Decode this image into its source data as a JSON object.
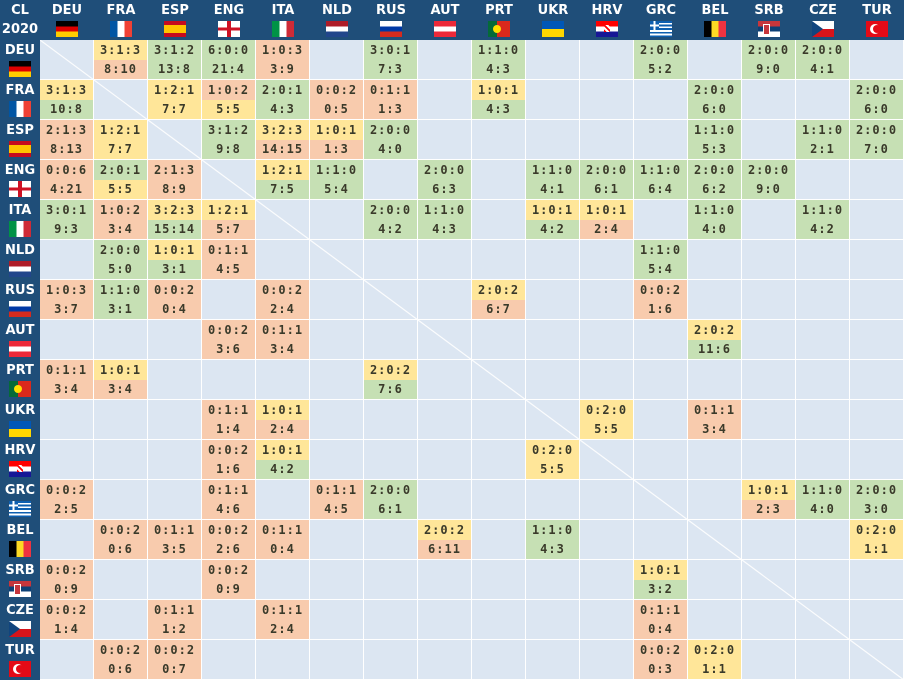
{
  "corner": {
    "line1": "CL",
    "line2": "2020"
  },
  "teams": [
    "DEU",
    "FRA",
    "ESP",
    "ENG",
    "ITA",
    "NLD",
    "RUS",
    "AUT",
    "PRT",
    "UKR",
    "HRV",
    "GRC",
    "BEL",
    "SRB",
    "CZE",
    "TUR"
  ],
  "colors": {
    "g": "#c6e0b4",
    "y": "#ffe699",
    "r": "#f8cbad",
    "empty": "#dce6f2",
    "header": "#1f4e79"
  },
  "rows": {
    "DEU": {
      "FRA": {
        "rec": "3:1:3",
        "goals": "8:10",
        "c": "yr"
      },
      "ESP": {
        "rec": "3:1:2",
        "goals": "13:8",
        "c": "gg"
      },
      "ENG": {
        "rec": "6:0:0",
        "goals": "21:4",
        "c": "gg"
      },
      "ITA": {
        "rec": "1:0:3",
        "goals": "3:9",
        "c": "rr"
      },
      "RUS": {
        "rec": "3:0:1",
        "goals": "7:3",
        "c": "gg"
      },
      "PRT": {
        "rec": "1:1:0",
        "goals": "4:3",
        "c": "gg"
      },
      "GRC": {
        "rec": "2:0:0",
        "goals": "5:2",
        "c": "gg"
      },
      "SRB": {
        "rec": "2:0:0",
        "goals": "9:0",
        "c": "gg"
      },
      "CZE": {
        "rec": "2:0:0",
        "goals": "4:1",
        "c": "gg"
      }
    },
    "FRA": {
      "DEU": {
        "rec": "3:1:3",
        "goals": "10:8",
        "c": "yg"
      },
      "ESP": {
        "rec": "1:2:1",
        "goals": "7:7",
        "c": "yy"
      },
      "ENG": {
        "rec": "1:0:2",
        "goals": "5:5",
        "c": "ry"
      },
      "ITA": {
        "rec": "2:0:1",
        "goals": "4:3",
        "c": "gg"
      },
      "NLD": {
        "rec": "0:0:2",
        "goals": "0:5",
        "c": "rr"
      },
      "RUS": {
        "rec": "0:1:1",
        "goals": "1:3",
        "c": "rr"
      },
      "PRT": {
        "rec": "1:0:1",
        "goals": "4:3",
        "c": "yg"
      },
      "BEL": {
        "rec": "2:0:0",
        "goals": "6:0",
        "c": "gg"
      },
      "TUR": {
        "rec": "2:0:0",
        "goals": "6:0",
        "c": "gg"
      }
    },
    "ESP": {
      "DEU": {
        "rec": "2:1:3",
        "goals": "8:13",
        "c": "rr"
      },
      "FRA": {
        "rec": "1:2:1",
        "goals": "7:7",
        "c": "yy"
      },
      "ENG": {
        "rec": "3:1:2",
        "goals": "9:8",
        "c": "gg"
      },
      "ITA": {
        "rec": "3:2:3",
        "goals": "14:15",
        "c": "yr"
      },
      "NLD": {
        "rec": "1:0:1",
        "goals": "1:3",
        "c": "yr"
      },
      "RUS": {
        "rec": "2:0:0",
        "goals": "4:0",
        "c": "gg"
      },
      "BEL": {
        "rec": "1:1:0",
        "goals": "5:3",
        "c": "gg"
      },
      "CZE": {
        "rec": "1:1:0",
        "goals": "2:1",
        "c": "gg"
      },
      "TUR": {
        "rec": "2:0:0",
        "goals": "7:0",
        "c": "gg"
      }
    },
    "ENG": {
      "DEU": {
        "rec": "0:0:6",
        "goals": "4:21",
        "c": "rr"
      },
      "FRA": {
        "rec": "2:0:1",
        "goals": "5:5",
        "c": "gy"
      },
      "ESP": {
        "rec": "2:1:3",
        "goals": "8:9",
        "c": "rr"
      },
      "ITA": {
        "rec": "1:2:1",
        "goals": "7:5",
        "c": "yg"
      },
      "NLD": {
        "rec": "1:1:0",
        "goals": "5:4",
        "c": "gg"
      },
      "AUT": {
        "rec": "2:0:0",
        "goals": "6:3",
        "c": "gg"
      },
      "UKR": {
        "rec": "1:1:0",
        "goals": "4:1",
        "c": "gg"
      },
      "HRV": {
        "rec": "2:0:0",
        "goals": "6:1",
        "c": "gg"
      },
      "GRC": {
        "rec": "1:1:0",
        "goals": "6:4",
        "c": "gg"
      },
      "BEL": {
        "rec": "2:0:0",
        "goals": "6:2",
        "c": "gg"
      },
      "SRB": {
        "rec": "2:0:0",
        "goals": "9:0",
        "c": "gg"
      }
    },
    "ITA": {
      "DEU": {
        "rec": "3:0:1",
        "goals": "9:3",
        "c": "gg"
      },
      "FRA": {
        "rec": "1:0:2",
        "goals": "3:4",
        "c": "rr"
      },
      "ESP": {
        "rec": "3:2:3",
        "goals": "15:14",
        "c": "yg"
      },
      "ENG": {
        "rec": "1:2:1",
        "goals": "5:7",
        "c": "yr"
      },
      "RUS": {
        "rec": "2:0:0",
        "goals": "4:2",
        "c": "gg"
      },
      "AUT": {
        "rec": "1:1:0",
        "goals": "4:3",
        "c": "gg"
      },
      "UKR": {
        "rec": "1:0:1",
        "goals": "4:2",
        "c": "yg"
      },
      "HRV": {
        "rec": "1:0:1",
        "goals": "2:4",
        "c": "yr"
      },
      "BEL": {
        "rec": "1:1:0",
        "goals": "4:0",
        "c": "gg"
      },
      "CZE": {
        "rec": "1:1:0",
        "goals": "4:2",
        "c": "gg"
      }
    },
    "NLD": {
      "FRA": {
        "rec": "2:0:0",
        "goals": "5:0",
        "c": "gg"
      },
      "ESP": {
        "rec": "1:0:1",
        "goals": "3:1",
        "c": "yg"
      },
      "ENG": {
        "rec": "0:1:1",
        "goals": "4:5",
        "c": "rr"
      },
      "GRC": {
        "rec": "1:1:0",
        "goals": "5:4",
        "c": "gg"
      }
    },
    "RUS": {
      "DEU": {
        "rec": "1:0:3",
        "goals": "3:7",
        "c": "rr"
      },
      "FRA": {
        "rec": "1:1:0",
        "goals": "3:1",
        "c": "gg"
      },
      "ESP": {
        "rec": "0:0:2",
        "goals": "0:4",
        "c": "rr"
      },
      "ITA": {
        "rec": "0:0:2",
        "goals": "2:4",
        "c": "rr"
      },
      "PRT": {
        "rec": "2:0:2",
        "goals": "6:7",
        "c": "yr"
      },
      "GRC": {
        "rec": "0:0:2",
        "goals": "1:6",
        "c": "rr"
      }
    },
    "AUT": {
      "ENG": {
        "rec": "0:0:2",
        "goals": "3:6",
        "c": "rr"
      },
      "ITA": {
        "rec": "0:1:1",
        "goals": "3:4",
        "c": "rr"
      },
      "BEL": {
        "rec": "2:0:2",
        "goals": "11:6",
        "c": "yg"
      }
    },
    "PRT": {
      "DEU": {
        "rec": "0:1:1",
        "goals": "3:4",
        "c": "rr"
      },
      "FRA": {
        "rec": "1:0:1",
        "goals": "3:4",
        "c": "yr"
      },
      "RUS": {
        "rec": "2:0:2",
        "goals": "7:6",
        "c": "yg"
      }
    },
    "UKR": {
      "ENG": {
        "rec": "0:1:1",
        "goals": "1:4",
        "c": "rr"
      },
      "ITA": {
        "rec": "1:0:1",
        "goals": "2:4",
        "c": "yr"
      },
      "HRV": {
        "rec": "0:2:0",
        "goals": "5:5",
        "c": "yy"
      },
      "BEL": {
        "rec": "0:1:1",
        "goals": "3:4",
        "c": "rr"
      }
    },
    "HRV": {
      "ENG": {
        "rec": "0:0:2",
        "goals": "1:6",
        "c": "rr"
      },
      "ITA": {
        "rec": "1:0:1",
        "goals": "4:2",
        "c": "yg"
      },
      "UKR": {
        "rec": "0:2:0",
        "goals": "5:5",
        "c": "yy"
      }
    },
    "GRC": {
      "DEU": {
        "rec": "0:0:2",
        "goals": "2:5",
        "c": "rr"
      },
      "ENG": {
        "rec": "0:1:1",
        "goals": "4:6",
        "c": "rr"
      },
      "NLD": {
        "rec": "0:1:1",
        "goals": "4:5",
        "c": "rr"
      },
      "RUS": {
        "rec": "2:0:0",
        "goals": "6:1",
        "c": "gg"
      },
      "SRB": {
        "rec": "1:0:1",
        "goals": "2:3",
        "c": "yr"
      },
      "CZE": {
        "rec": "1:1:0",
        "goals": "4:0",
        "c": "gg"
      },
      "TUR": {
        "rec": "2:0:0",
        "goals": "3:0",
        "c": "gg"
      }
    },
    "BEL": {
      "FRA": {
        "rec": "0:0:2",
        "goals": "0:6",
        "c": "rr"
      },
      "ESP": {
        "rec": "0:1:1",
        "goals": "3:5",
        "c": "rr"
      },
      "ENG": {
        "rec": "0:0:2",
        "goals": "2:6",
        "c": "rr"
      },
      "ITA": {
        "rec": "0:1:1",
        "goals": "0:4",
        "c": "rr"
      },
      "AUT": {
        "rec": "2:0:2",
        "goals": "6:11",
        "c": "yr"
      },
      "UKR": {
        "rec": "1:1:0",
        "goals": "4:3",
        "c": "gg"
      },
      "TUR": {
        "rec": "0:2:0",
        "goals": "1:1",
        "c": "yy"
      }
    },
    "SRB": {
      "DEU": {
        "rec": "0:0:2",
        "goals": "0:9",
        "c": "rr"
      },
      "ENG": {
        "rec": "0:0:2",
        "goals": "0:9",
        "c": "rr"
      },
      "GRC": {
        "rec": "1:0:1",
        "goals": "3:2",
        "c": "yg"
      }
    },
    "CZE": {
      "DEU": {
        "rec": "0:0:2",
        "goals": "1:4",
        "c": "rr"
      },
      "ESP": {
        "rec": "0:1:1",
        "goals": "1:2",
        "c": "rr"
      },
      "ITA": {
        "rec": "0:1:1",
        "goals": "2:4",
        "c": "rr"
      },
      "GRC": {
        "rec": "0:1:1",
        "goals": "0:4",
        "c": "rr"
      }
    },
    "TUR": {
      "FRA": {
        "rec": "0:0:2",
        "goals": "0:6",
        "c": "rr"
      },
      "ESP": {
        "rec": "0:0:2",
        "goals": "0:7",
        "c": "rr"
      },
      "GRC": {
        "rec": "0:0:2",
        "goals": "0:3",
        "c": "rr"
      },
      "BEL": {
        "rec": "0:2:0",
        "goals": "1:1",
        "c": "yy"
      }
    }
  }
}
